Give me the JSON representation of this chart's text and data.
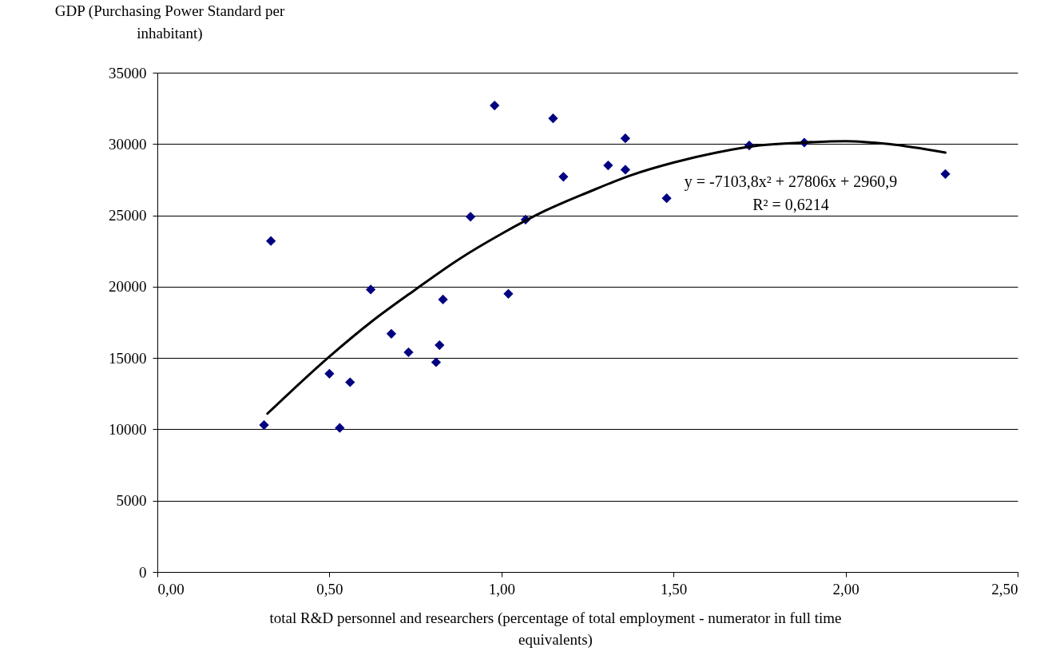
{
  "chart_data": {
    "type": "scatter",
    "xlabel": "total R&D personnel and researchers (percentage of total employment - numerator in full time equivalents)",
    "ylabel": "GDP (Purchasing Power Standard per inhabitant)",
    "xlim": [
      0,
      2.5
    ],
    "xticks": [
      {
        "value": 0,
        "label": "0,00"
      },
      {
        "value": 0.5,
        "label": "0,50"
      },
      {
        "value": 1,
        "label": "1,00"
      },
      {
        "value": 1.5,
        "label": "1,50"
      },
      {
        "value": 2,
        "label": "2,00"
      },
      {
        "value": 2.5,
        "label": "2,50"
      }
    ],
    "ylim": [
      0,
      35000
    ],
    "yticks": [
      0,
      5000,
      10000,
      15000,
      20000,
      25000,
      30000,
      35000
    ],
    "grid": "y",
    "marker": "diamond",
    "series": [
      {
        "color": "#000080",
        "x": [
          0.31,
          0.33,
          0.5,
          0.53,
          0.56,
          0.62,
          0.68,
          0.73,
          0.81,
          0.82,
          0.83,
          0.91,
          0.98,
          1.02,
          1.07,
          1.15,
          1.18,
          1.31,
          1.36,
          1.36,
          1.48,
          1.72,
          1.88,
          2.29
        ],
        "values": [
          10300,
          23200,
          13900,
          10100,
          13300,
          19800,
          16700,
          15400,
          14700,
          15900,
          19100,
          24900,
          32700,
          19500,
          24700,
          31800,
          27700,
          28500,
          30400,
          28200,
          26200,
          29900,
          30100,
          27900
        ]
      },
      {
        "type": "line",
        "color": "#000000",
        "line_style": "solid",
        "marker": "none",
        "x": [
          0.32,
          0.5,
          0.625,
          0.75,
          0.875,
          1.0,
          1.125,
          1.25,
          1.375,
          1.5,
          1.625,
          1.75,
          1.875,
          2.0,
          2.125,
          2.29
        ],
        "values": [
          11100,
          15100,
          17600,
          19800,
          21900,
          23700,
          25300,
          26600,
          27800,
          28700,
          29400,
          29900,
          30100,
          30200,
          30000,
          29400
        ]
      }
    ],
    "annotations": [
      "y = -7103,8x² + 27806x + 2960,9",
      "R² = 0,6214"
    ]
  }
}
